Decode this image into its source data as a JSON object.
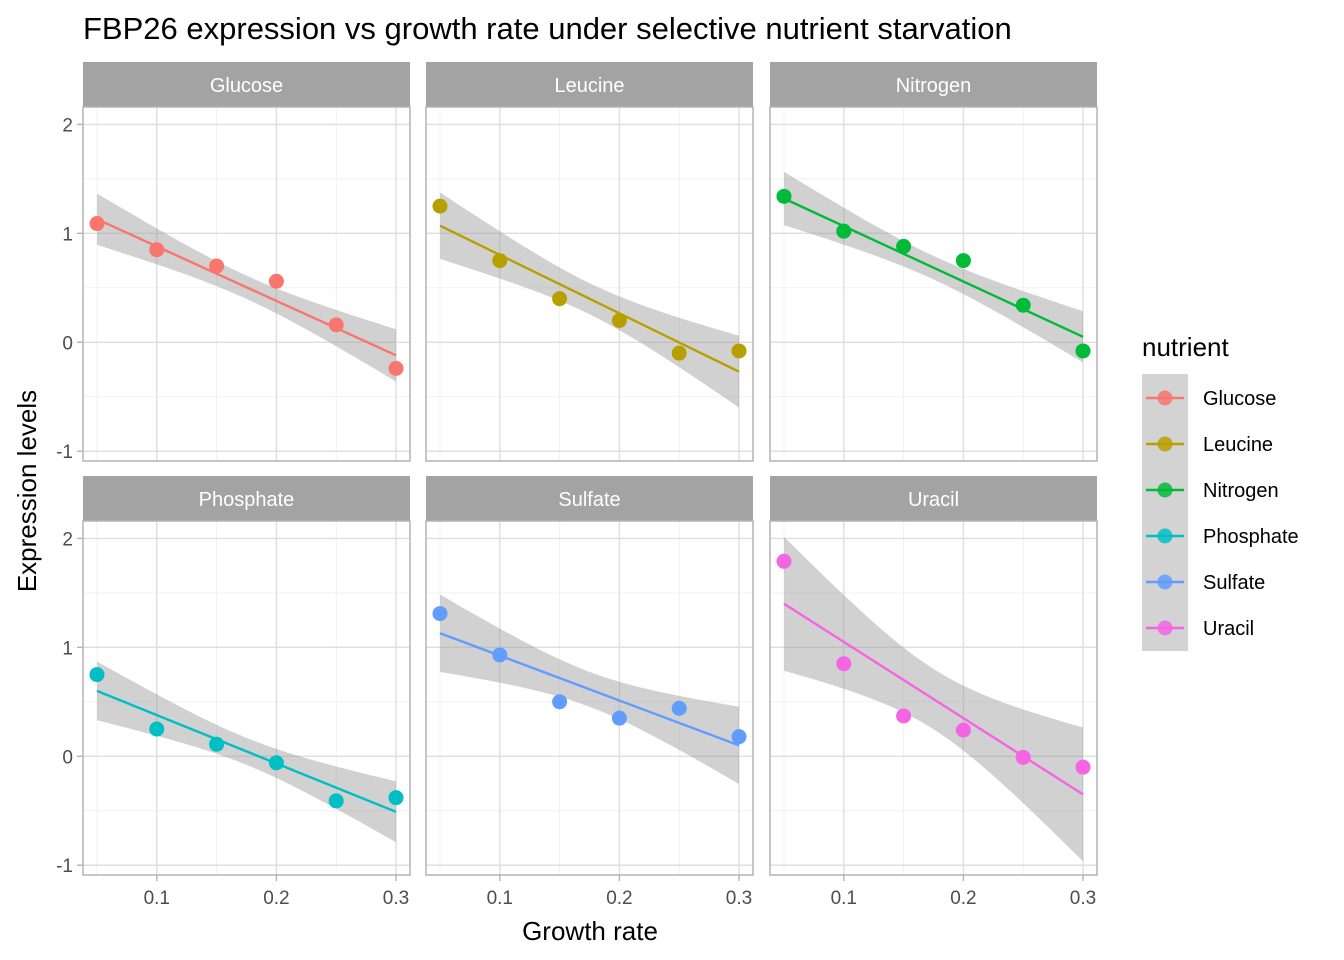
{
  "chart_data": {
    "type": "scatter",
    "title": "FBP26 expression vs growth rate under selective nutrient starvation",
    "xlabel": "Growth rate",
    "ylabel": "Expression levels",
    "xlim": [
      0.0383,
      0.3117
    ],
    "ylim": [
      -1.09,
      2.16
    ],
    "x_ticks": [
      0.1,
      0.2,
      0.3
    ],
    "x_tick_labels": [
      "0.1",
      "0.2",
      "0.3"
    ],
    "y_ticks": [
      -1,
      0,
      1,
      2
    ],
    "y_tick_labels": [
      "-1",
      "0",
      "1",
      "2"
    ],
    "grid": true,
    "facet_layout": {
      "rows": 2,
      "cols": 3
    },
    "smooth": "linear regression with 95% confidence band",
    "legend": {
      "title": "nutrient",
      "position": "right",
      "entries": [
        "Glucose",
        "Leucine",
        "Nitrogen",
        "Phosphate",
        "Sulfate",
        "Uracil"
      ]
    },
    "x": [
      0.05,
      0.1,
      0.15,
      0.2,
      0.25,
      0.3
    ],
    "series": [
      {
        "name": "Glucose",
        "color": "#F8766D",
        "values": [
          1.09,
          0.85,
          0.7,
          0.56,
          0.16,
          -0.24
        ],
        "fit": [
          1.13,
          -0.12
        ],
        "band_lower": [
          0.91,
          -0.36
        ],
        "band_upper": [
          1.38,
          0.12
        ]
      },
      {
        "name": "Leucine",
        "color": "#B79F00",
        "values": [
          1.25,
          0.75,
          0.4,
          0.2,
          -0.1,
          -0.08
        ],
        "fit": [
          1.07,
          -0.27
        ],
        "band_lower": [
          0.78,
          -0.59
        ],
        "band_upper": [
          1.39,
          0.07
        ]
      },
      {
        "name": "Nitrogen",
        "color": "#00BA38",
        "values": [
          1.34,
          1.02,
          0.88,
          0.75,
          0.34,
          -0.08
        ],
        "fit": [
          1.32,
          0.05
        ],
        "band_lower": [
          1.12,
          -0.18
        ],
        "band_upper": [
          1.61,
          0.29
        ]
      },
      {
        "name": "Phosphate",
        "color": "#00BFC4",
        "values": [
          0.75,
          0.25,
          0.11,
          -0.06,
          -0.41,
          -0.38
        ],
        "fit": [
          0.6,
          -0.51
        ],
        "band_lower": [
          0.33,
          -0.78
        ],
        "band_upper": [
          0.87,
          -0.22
        ]
      },
      {
        "name": "Sulfate",
        "color": "#619CFF",
        "values": [
          1.31,
          0.93,
          0.5,
          0.35,
          0.44,
          0.18
        ],
        "fit": [
          1.13,
          0.1
        ],
        "band_lower": [
          0.78,
          -0.25
        ],
        "band_upper": [
          1.49,
          0.46
        ]
      },
      {
        "name": "Uracil",
        "color": "#F564E3",
        "values": [
          1.79,
          0.85,
          0.37,
          0.24,
          -0.01,
          -0.1
        ],
        "fit": [
          1.4,
          -0.35
        ],
        "band_lower": [
          0.79,
          -0.96
        ],
        "band_upper": [
          2.02,
          0.27
        ]
      }
    ]
  }
}
